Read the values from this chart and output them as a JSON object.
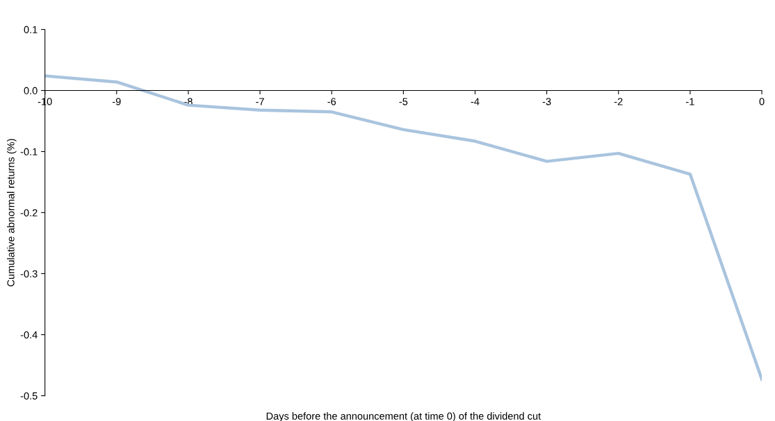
{
  "chart_data": {
    "type": "line",
    "xlabel": "Days before the announcement (at time 0) of the dividend cut",
    "ylabel": "Cumulative abnormal returns (%)",
    "x": [
      -10,
      -9,
      -8,
      -7,
      -6,
      -5,
      -4,
      -3,
      -2,
      -1,
      0
    ],
    "series": [
      {
        "color": "#a9c4de",
        "values": [
          0.024,
          0.014,
          -0.024,
          -0.032,
          -0.035,
          -0.064,
          -0.083,
          -0.116,
          -0.103,
          -0.137,
          -0.473
        ]
      }
    ],
    "xlim": [
      -10,
      0
    ],
    "xticks": [
      -10,
      -9,
      -8,
      -7,
      -6,
      -5,
      -4,
      -3,
      -2,
      -1,
      0
    ],
    "ylim": [
      -0.5,
      0.1
    ],
    "yticks": [
      {
        "value": -0.5,
        "label": "-0.5"
      },
      {
        "value": -0.4,
        "label": "-0.4"
      },
      {
        "value": -0.3,
        "label": "-0.3"
      },
      {
        "value": -0.2,
        "label": "-0.2"
      },
      {
        "value": -0.1,
        "label": "-0.1"
      },
      {
        "value": 0.0,
        "label": "0.0"
      },
      {
        "value": 0.1,
        "label": "0.1"
      }
    ],
    "grid": false,
    "legend": false,
    "marker": "none",
    "line_style": "solid"
  }
}
